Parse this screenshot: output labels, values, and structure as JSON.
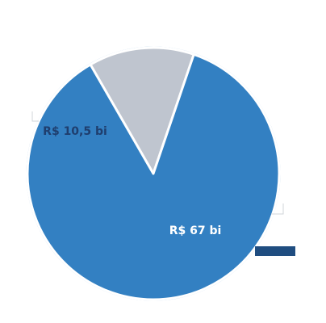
{
  "chart_data": {
    "type": "pie",
    "slices": [
      {
        "label": "R$ 10,5 bi",
        "value": 10.5,
        "color": "#bfc5cf",
        "label_color": "#1f3e6e"
      },
      {
        "label": "R$ 67 bi",
        "value": 67,
        "color": "#3380c2",
        "label_color": "#ffffff"
      }
    ],
    "start_angle_deg": 240,
    "direction": "clockwise",
    "legend": {
      "swatch_color": "#1f4d80"
    },
    "colors": {
      "background": "#ffffff",
      "slice_border": "#ffffff",
      "outer_stroke": "#a9c8e6"
    }
  }
}
